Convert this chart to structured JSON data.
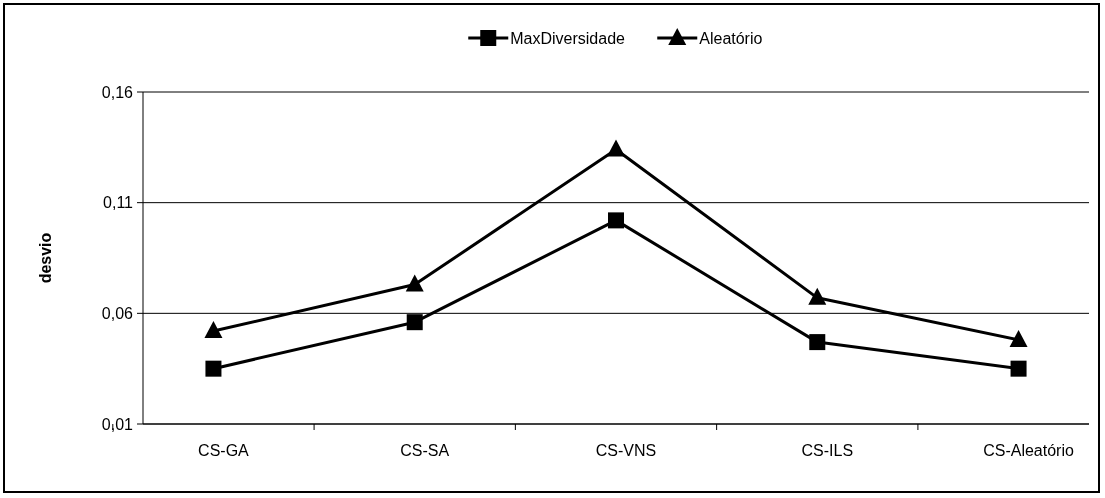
{
  "chart_data": {
    "type": "line",
    "categories": [
      "CS-GA",
      "CS-SA",
      "CS-VNS",
      "CS-ILS",
      "CS-Aleatório"
    ],
    "ylabel": "desvio",
    "ylim": [
      0.01,
      0.16
    ],
    "yticks": [
      {
        "value": 0.01,
        "label": "0,01"
      },
      {
        "value": 0.06,
        "label": "0,06"
      },
      {
        "value": 0.11,
        "label": "0,11"
      },
      {
        "value": 0.16,
        "label": "0,16"
      }
    ],
    "grid": "y",
    "legend": "top",
    "line_style": "solid",
    "series": [
      {
        "name": "MaxDiversidade",
        "color": "#000000",
        "marker": "square",
        "values": [
          0.035,
          0.056,
          0.102,
          0.047,
          0.035
        ]
      },
      {
        "name": "Aleatório",
        "color": "#000000",
        "marker": "triangle",
        "values": [
          0.052,
          0.073,
          0.134,
          0.067,
          0.048
        ]
      }
    ]
  }
}
